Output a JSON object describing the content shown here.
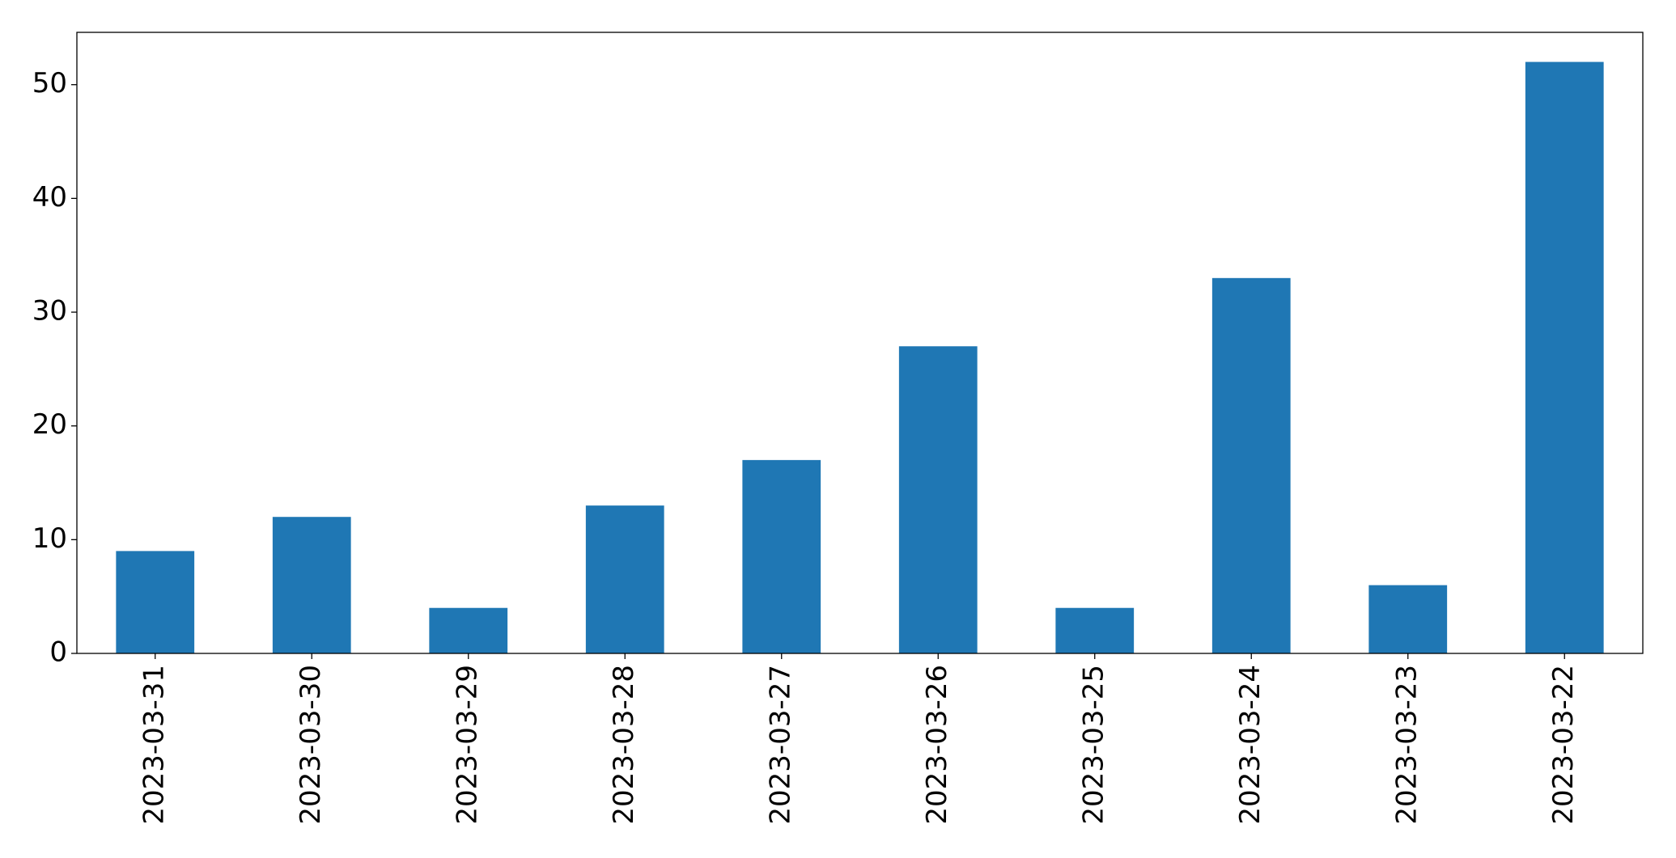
{
  "chart_data": {
    "type": "bar",
    "categories": [
      "2023-03-31",
      "2023-03-30",
      "2023-03-29",
      "2023-03-28",
      "2023-03-27",
      "2023-03-26",
      "2023-03-25",
      "2023-03-24",
      "2023-03-23",
      "2023-03-22"
    ],
    "values": [
      9,
      12,
      4,
      13,
      17,
      27,
      4,
      33,
      6,
      52
    ],
    "color": "#1f77b4",
    "ylim": [
      0,
      54.6
    ],
    "yticks": [
      0,
      10,
      20,
      30,
      40,
      50
    ],
    "grid": false
  }
}
